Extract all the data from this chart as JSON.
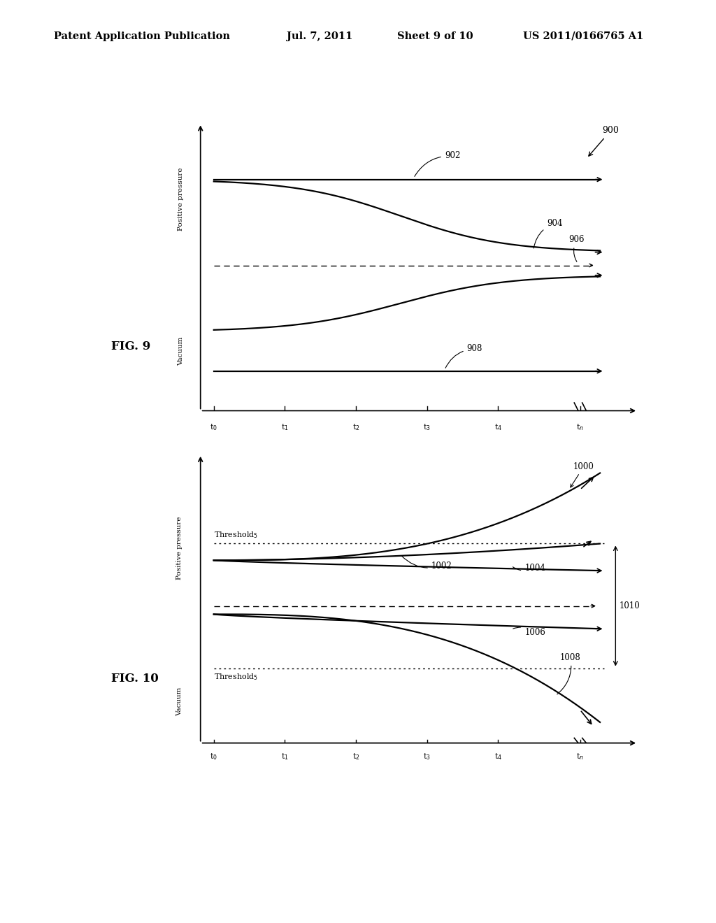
{
  "background_color": "#ffffff",
  "header_text": "Patent Application Publication",
  "header_date": "Jul. 7, 2011",
  "header_sheet": "Sheet 9 of 10",
  "header_patent": "US 2011/0166765 A1",
  "fig9_label": "FIG. 9",
  "fig10_label": "FIG. 10"
}
